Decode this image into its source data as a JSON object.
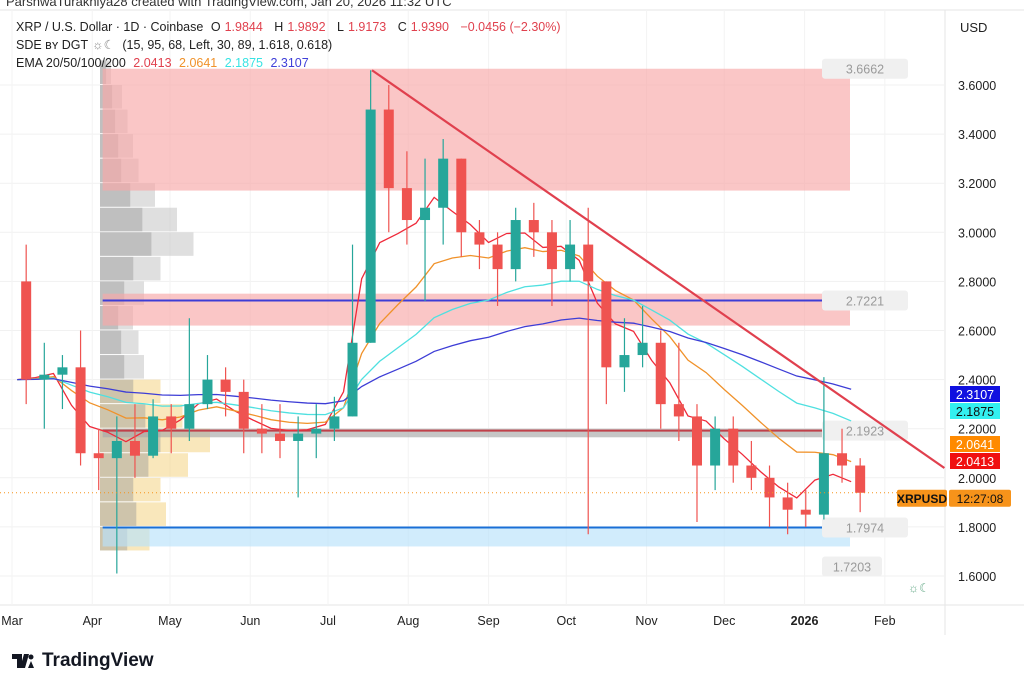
{
  "caption": "ParshwaTurakhiya28 created with TradingView.com, Jan 20, 2026 11:32 UTC",
  "legend": {
    "symbol": "XRP / U.S. Dollar · 1D · Coinbase",
    "o_label": "O",
    "o": "1.9844",
    "h_label": "H",
    "h": "1.9892",
    "l_label": "L",
    "l": "1.9173",
    "c_label": "C",
    "c": "1.9390",
    "change": "−0.0456 (−2.30%)",
    "sde": "SDE ʙʏ DGT",
    "sde_icon": "weather-moon-icon",
    "sde_params": "(15, 95, 68, Left, 30, 89, 1.618, 0.618)",
    "ema": "EMA 20/50/100/200",
    "ema_values": [
      "2.0413",
      "2.0641",
      "2.1875",
      "2.3107"
    ]
  },
  "currency": "USD",
  "logo": "TradingView",
  "colors": {
    "up": "#26a69a",
    "down": "#ef5350",
    "ema20": "#ef2a3a",
    "ema50": "#f0922a",
    "ema100": "#4fe0e0",
    "ema200": "#3d3dd6",
    "trendline": "#e0404e",
    "resistance_zone": "#f7a7a7",
    "support_zone": "#b9e2fb",
    "last_price": "#f7931a"
  },
  "chart_data": {
    "type": "candlestick",
    "title": "XRP / U.S. Dollar · 1D · Coinbase",
    "ylim": [
      1.5,
      3.75
    ],
    "y_ticks": [
      "1.6000",
      "1.8000",
      "2.0000",
      "2.2000",
      "2.4000",
      "2.6000",
      "2.8000",
      "3.0000",
      "3.2000",
      "3.4000",
      "3.6000"
    ],
    "x_ticks": [
      {
        "label": "Mar",
        "date": "2025-03-01"
      },
      {
        "label": "Apr",
        "date": "2025-04-01"
      },
      {
        "label": "May",
        "date": "2025-05-01"
      },
      {
        "label": "Jun",
        "date": "2025-06-01"
      },
      {
        "label": "Jul",
        "date": "2025-07-01"
      },
      {
        "label": "Aug",
        "date": "2025-08-01"
      },
      {
        "label": "Sep",
        "date": "2025-09-01"
      },
      {
        "label": "Oct",
        "date": "2025-10-01"
      },
      {
        "label": "Nov",
        "date": "2025-11-01"
      },
      {
        "label": "Dec",
        "date": "2025-12-01"
      },
      {
        "label": "2026",
        "date": "2026-01-01"
      },
      {
        "label": "Feb",
        "date": "2026-02-01"
      }
    ],
    "dates": [
      "2025-03-03",
      "2025-03-10",
      "2025-03-17",
      "2025-03-24",
      "2025-03-31",
      "2025-04-07",
      "2025-04-14",
      "2025-04-21",
      "2025-04-28",
      "2025-05-05",
      "2025-05-12",
      "2025-05-19",
      "2025-05-26",
      "2025-06-02",
      "2025-06-09",
      "2025-06-16",
      "2025-06-23",
      "2025-06-30",
      "2025-07-07",
      "2025-07-14",
      "2025-07-21",
      "2025-07-28",
      "2025-08-04",
      "2025-08-11",
      "2025-08-18",
      "2025-08-25",
      "2025-09-01",
      "2025-09-08",
      "2025-09-15",
      "2025-09-22",
      "2025-09-29",
      "2025-10-06",
      "2025-10-13",
      "2025-10-20",
      "2025-10-27",
      "2025-11-03",
      "2025-11-10",
      "2025-11-17",
      "2025-11-24",
      "2025-12-01",
      "2025-12-08",
      "2025-12-15",
      "2025-12-22",
      "2025-12-29",
      "2026-01-05",
      "2026-01-12",
      "2026-01-19"
    ],
    "open": [
      2.8,
      2.4,
      2.42,
      2.45,
      2.1,
      2.08,
      2.15,
      2.09,
      2.25,
      2.2,
      2.3,
      2.4,
      2.35,
      2.2,
      2.18,
      2.15,
      2.18,
      2.2,
      2.25,
      2.55,
      3.5,
      3.18,
      3.05,
      3.1,
      3.3,
      3.0,
      2.95,
      2.85,
      3.05,
      3.0,
      2.85,
      2.95,
      2.8,
      2.45,
      2.5,
      2.55,
      2.3,
      2.25,
      2.05,
      2.2,
      2.05,
      2.0,
      1.92,
      1.87,
      1.85,
      2.1,
      2.05
    ],
    "high": [
      2.95,
      2.55,
      2.5,
      2.6,
      2.2,
      2.25,
      2.3,
      2.32,
      2.3,
      2.65,
      2.5,
      2.45,
      2.4,
      2.3,
      2.3,
      2.25,
      2.3,
      2.33,
      2.95,
      3.66,
      3.6,
      3.33,
      3.3,
      3.38,
      3.3,
      3.05,
      3.0,
      3.1,
      3.12,
      3.05,
      3.05,
      3.1,
      2.8,
      2.65,
      2.7,
      2.6,
      2.55,
      2.3,
      2.25,
      2.25,
      2.15,
      2.05,
      1.98,
      1.95,
      2.41,
      2.2,
      2.08
    ],
    "low": [
      2.3,
      2.2,
      2.28,
      2.05,
      1.95,
      1.61,
      2.0,
      2.08,
      2.1,
      2.15,
      2.28,
      2.25,
      2.1,
      2.1,
      2.08,
      1.92,
      2.08,
      2.15,
      2.25,
      2.55,
      3.0,
      2.95,
      2.72,
      2.95,
      2.9,
      2.85,
      2.7,
      2.8,
      2.9,
      2.7,
      2.8,
      1.77,
      2.3,
      2.35,
      2.45,
      2.2,
      2.15,
      1.82,
      1.95,
      1.98,
      1.95,
      1.8,
      1.77,
      1.8,
      1.83,
      1.98,
      1.86
    ],
    "close": [
      2.4,
      2.42,
      2.45,
      2.1,
      2.08,
      2.15,
      2.09,
      2.25,
      2.2,
      2.3,
      2.4,
      2.35,
      2.2,
      2.18,
      2.15,
      2.18,
      2.2,
      2.25,
      2.55,
      3.5,
      3.18,
      3.05,
      3.1,
      3.3,
      3.0,
      2.95,
      2.85,
      3.05,
      3.0,
      2.85,
      2.95,
      2.8,
      2.45,
      2.5,
      2.55,
      2.3,
      2.25,
      2.05,
      2.2,
      2.05,
      2.0,
      1.92,
      1.87,
      1.85,
      2.1,
      2.05,
      1.939
    ],
    "zones": [
      {
        "kind": "resistance",
        "from": 3.17,
        "to": 3.6662,
        "label": "3.6662"
      },
      {
        "kind": "resistance",
        "from": 2.62,
        "to": 2.75,
        "line": 2.7221,
        "label": "2.7221"
      },
      {
        "kind": "poc",
        "from": 2.165,
        "to": 2.2,
        "line": 2.1923,
        "label": "2.1923"
      },
      {
        "kind": "support",
        "from": 1.7203,
        "to": 1.7974,
        "line": 1.7974,
        "label": "1.7974",
        "label2": "1.7203"
      }
    ],
    "trendline": [
      {
        "date": "2025-07-18",
        "price": 3.66
      },
      {
        "date": "2026-02-24",
        "price": 2.04
      }
    ],
    "price_labels": [
      {
        "text": "2.3107",
        "value": 2.3107,
        "bg": "#1010e0",
        "fg": "#ffffff"
      },
      {
        "text": "2.1875",
        "value": 2.1875,
        "bg": "#33f0f0",
        "fg": "#111111"
      },
      {
        "text": "2.0641",
        "value": 2.0641,
        "bg": "#ff8a00",
        "fg": "#ffffff"
      },
      {
        "text": "2.0413",
        "value": 2.0413,
        "bg": "#f01010",
        "fg": "#ffffff"
      }
    ],
    "last_price": {
      "value": 1.939,
      "symbol": "XRPUSD",
      "countdown": "12:27:08"
    },
    "volume_profile": {
      "prices": [
        1.75,
        1.85,
        1.95,
        2.05,
        2.15,
        2.25,
        2.35,
        2.45,
        2.55,
        2.65,
        2.75,
        2.85,
        2.95,
        3.05,
        3.15,
        3.25,
        3.35,
        3.45,
        3.55,
        3.65
      ],
      "volumes": [
        0.45,
        0.6,
        0.55,
        0.8,
        1.0,
        0.75,
        0.55,
        0.4,
        0.35,
        0.3,
        0.4,
        0.55,
        0.85,
        0.7,
        0.5,
        0.35,
        0.3,
        0.25,
        0.2,
        0.1
      ]
    }
  }
}
